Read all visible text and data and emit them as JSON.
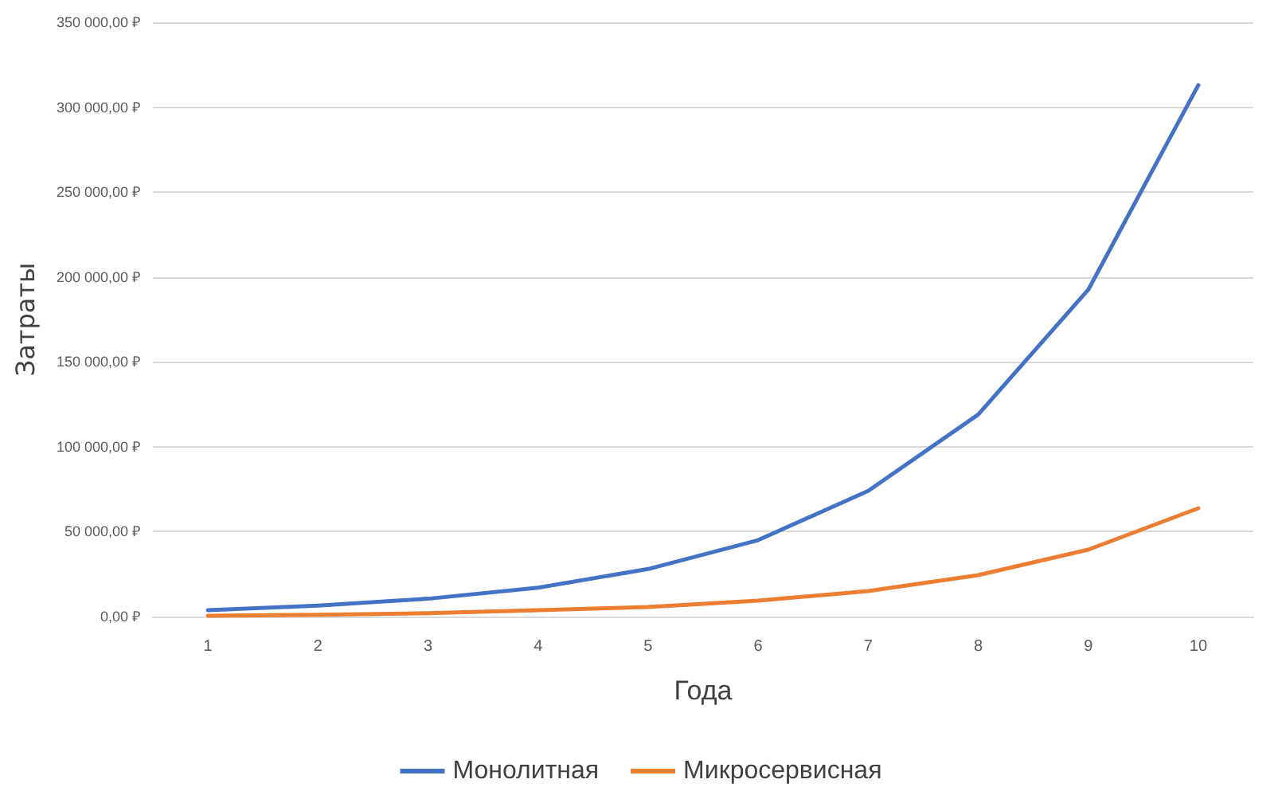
{
  "chart_data": {
    "type": "line",
    "xlabel": "Года",
    "ylabel": "Затраты",
    "categories": [
      "1",
      "2",
      "3",
      "4",
      "5",
      "6",
      "7",
      "8",
      "9",
      "10"
    ],
    "series": [
      {
        "name": "Монолитная",
        "color": "#4472c4",
        "values": [
          3800,
          6500,
          10500,
          17000,
          28000,
          45000,
          74000,
          119000,
          192500,
          313000
        ]
      },
      {
        "name": "Микросервисная",
        "color": "#ed7d31",
        "values": [
          500,
          1000,
          2000,
          3700,
          5600,
          9400,
          15000,
          24400,
          39400,
          63800
        ]
      }
    ],
    "ylim": [
      0,
      350000
    ],
    "yticks": [
      {
        "value": 0,
        "label": "0,00 ₽"
      },
      {
        "value": 50000,
        "label": "50 000,00 ₽"
      },
      {
        "value": 100000,
        "label": "100 000,00 ₽"
      },
      {
        "value": 150000,
        "label": "150 000,00 ₽"
      },
      {
        "value": 200000,
        "label": "200 000,00 ₽"
      },
      {
        "value": 250000,
        "label": "250 000,00 ₽"
      },
      {
        "value": 300000,
        "label": "300 000,00 ₽"
      },
      {
        "value": 350000,
        "label": "350 000,00 ₽"
      }
    ],
    "grid": "y",
    "legend": "bottom",
    "marker": "none",
    "line_style": "solid"
  }
}
